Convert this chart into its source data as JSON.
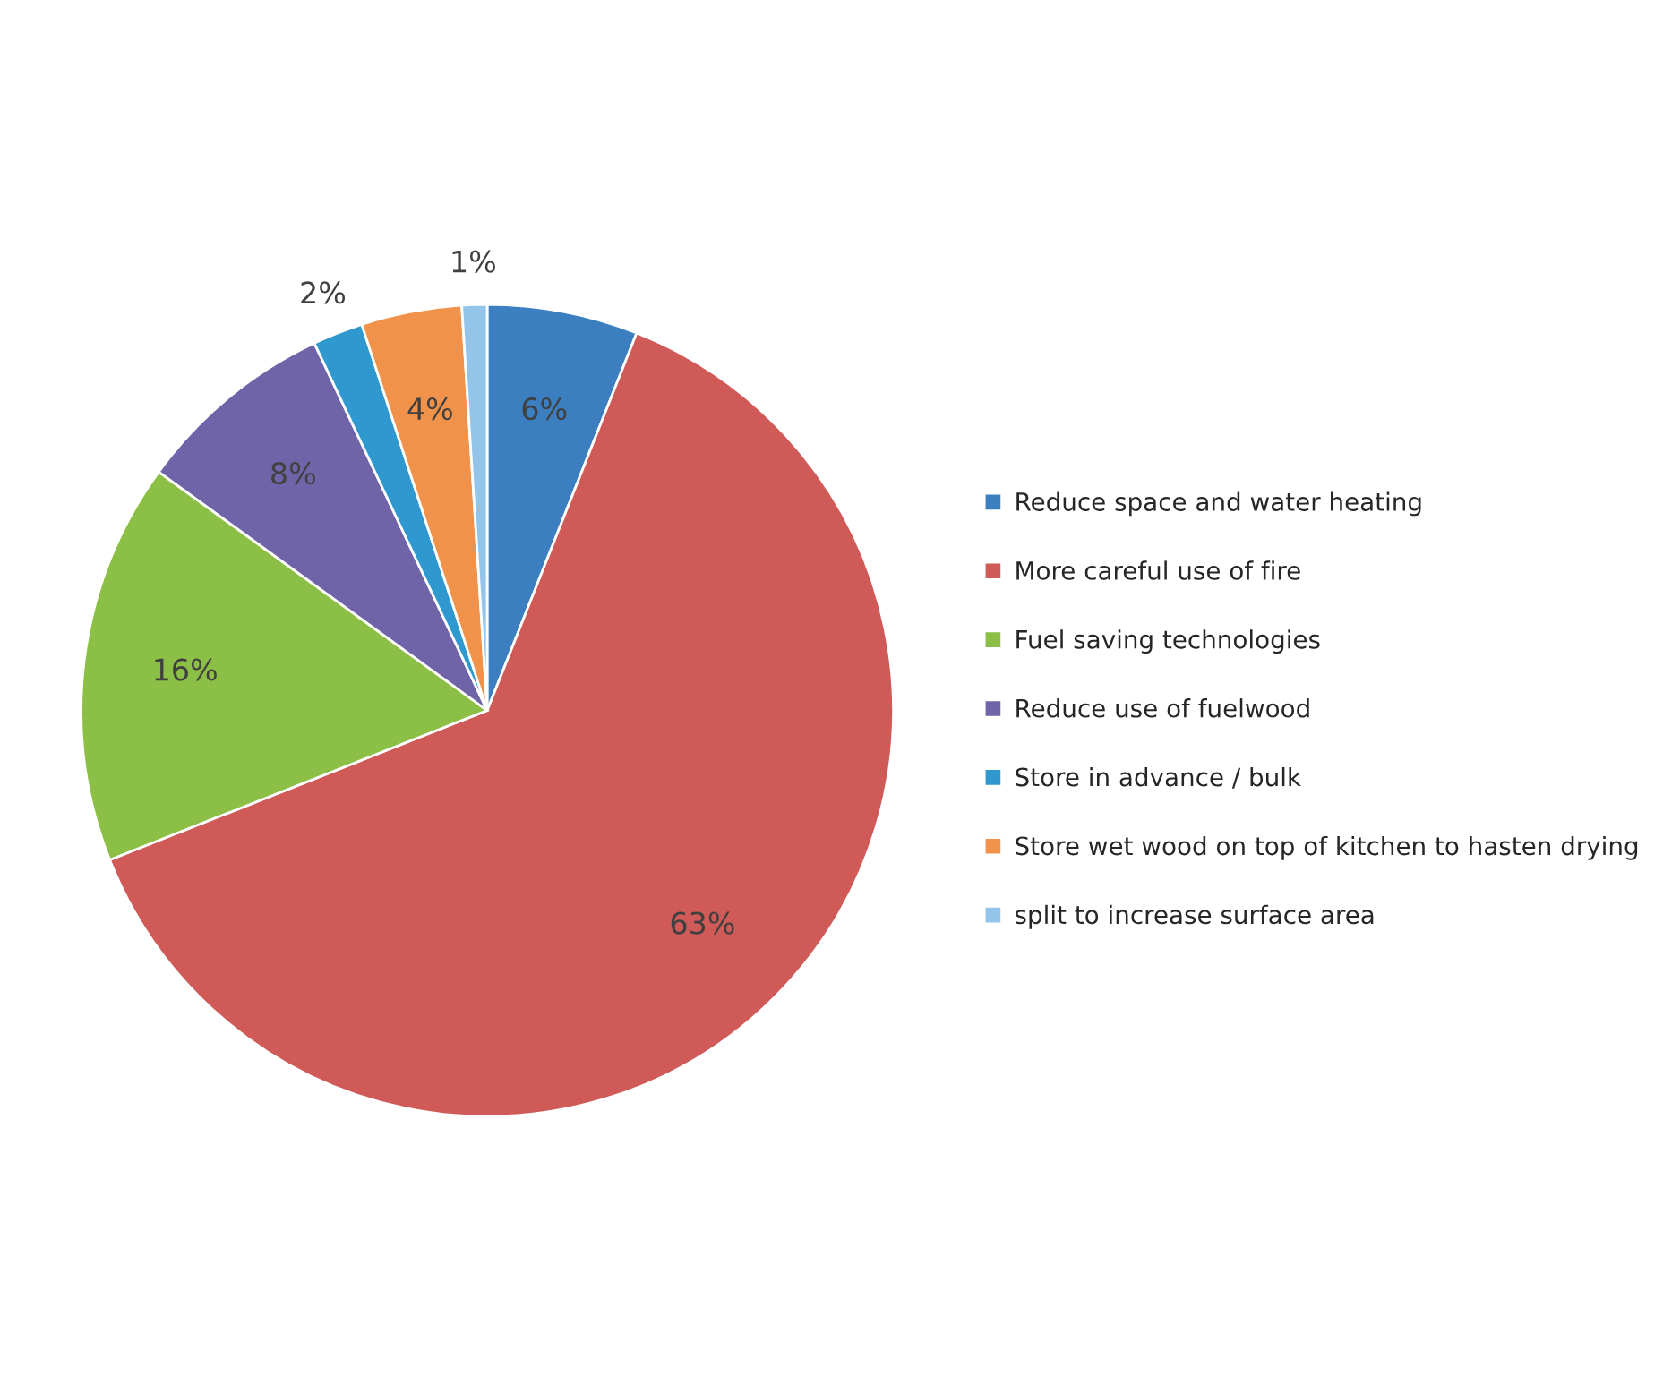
{
  "chart_data": {
    "type": "pie",
    "categories": [
      "Reduce space and water heating",
      "More careful use of fire",
      "Fuel saving technologies",
      "Reduce use of fuelwood",
      "Store in advance / bulk",
      "Store wet wood on top of kitchen to hasten drying",
      "split to increase surface area"
    ],
    "values": [
      6,
      63,
      16,
      8,
      2,
      4,
      1
    ],
    "colors": [
      "#3b7fc1",
      "#d05a57",
      "#8cbf45",
      "#7064a8",
      "#2e98cf",
      "#f0924a",
      "#93c5ea"
    ],
    "value_labels": [
      "6%",
      "63%",
      "16%",
      "8%",
      "2%",
      "4%",
      "1%"
    ],
    "legend": "right"
  }
}
